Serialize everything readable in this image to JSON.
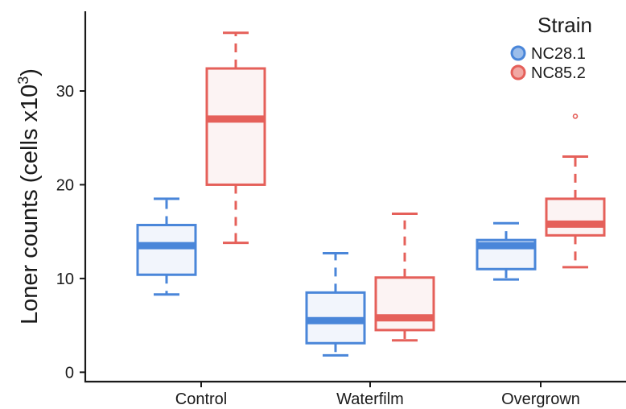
{
  "chart_data": {
    "type": "box",
    "title": "",
    "xlabel": "",
    "ylabel": "Loner counts (cells x10",
    "ylabel_superscript": "3",
    "ylabel_close": ")",
    "categories": [
      "Control",
      "Waterfilm",
      "Overgrown"
    ],
    "y_ticks": [
      0,
      10,
      20,
      30
    ],
    "ylim": [
      -1,
      38.5
    ],
    "grid": false,
    "legend": {
      "title": "Strain",
      "placement": "top-right"
    },
    "series": [
      {
        "name": "NC28.1",
        "color": "#4a86d9",
        "fill": "#f2f5fc",
        "boxes": [
          {
            "category": "Control",
            "whisker_low": 8.3,
            "q1": 10.4,
            "median": 13.5,
            "q3": 15.7,
            "whisker_high": 18.5,
            "outliers": []
          },
          {
            "category": "Waterfilm",
            "whisker_low": 1.8,
            "q1": 3.1,
            "median": 5.5,
            "q3": 8.5,
            "whisker_high": 12.7,
            "outliers": []
          },
          {
            "category": "Overgrown",
            "whisker_low": 9.9,
            "q1": 11.0,
            "median": 13.5,
            "q3": 14.1,
            "whisker_high": 15.9,
            "outliers": []
          }
        ]
      },
      {
        "name": "NC85.2",
        "color": "#e5605a",
        "fill": "#fcf3f3",
        "boxes": [
          {
            "category": "Control",
            "whisker_low": 13.8,
            "q1": 20.0,
            "median": 27.0,
            "q3": 32.4,
            "whisker_high": 36.2,
            "outliers": []
          },
          {
            "category": "Waterfilm",
            "whisker_low": 3.4,
            "q1": 4.5,
            "median": 5.8,
            "q3": 10.1,
            "whisker_high": 16.9,
            "outliers": []
          },
          {
            "category": "Overgrown",
            "whisker_low": 11.2,
            "q1": 14.6,
            "median": 15.8,
            "q3": 18.5,
            "whisker_high": 23.0,
            "outliers": [
              27.3
            ]
          }
        ]
      }
    ]
  }
}
